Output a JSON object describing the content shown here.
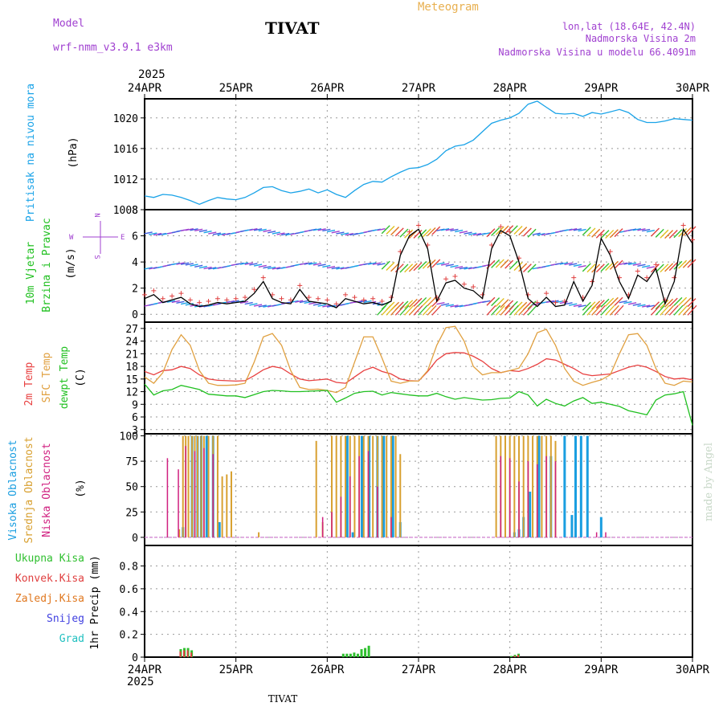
{
  "header": {
    "model_label": "Model",
    "model_name": "wrf-nmm_v3.9.1 e3km",
    "station": "TIVAT",
    "meteogram": "Meteogram",
    "lonlat": "lon,lat (18.64E, 42.4N)",
    "elevation": "Nadmorska Visina 2m",
    "model_elevation": "Nadmorska Visina u modelu 66.4091m",
    "footer_station": "TIVAT",
    "credit": "made by Angel"
  },
  "time_axis": {
    "year": "2025",
    "ticks": [
      "24APR",
      "25APR",
      "26APR",
      "27APR",
      "28APR",
      "29APR",
      "30APR"
    ]
  },
  "colors": {
    "pressure": "#1aa3e8",
    "wind_speed": "#000000",
    "temp2m": "#e84040",
    "sfc_temp": "#e0a040",
    "dewpt": "#20c020",
    "high_cloud": "#1a9ee0",
    "mid_cloud": "#d8a030",
    "low_cloud": "#d02080",
    "purple": "#a040d0",
    "total_precip": "#30c030",
    "conv_precip": "#e04040",
    "gridscale_precip": "#e07820",
    "snow": "#4040e0",
    "hail": "#20c0c0"
  },
  "chart_data": [
    {
      "type": "line",
      "title": "Pritisak na nivou mora",
      "ylabel": "(hPa)",
      "yticks": [
        1008,
        1012,
        1016,
        1020
      ],
      "ylim": [
        1008,
        1022.5
      ],
      "x_days": [
        0,
        0.1,
        0.2,
        0.3,
        0.4,
        0.5,
        0.6,
        0.7,
        0.8,
        0.9,
        1.0,
        1.1,
        1.2,
        1.3,
        1.4,
        1.5,
        1.6,
        1.7,
        1.8,
        1.9,
        2.0,
        2.1,
        2.2,
        2.3,
        2.4,
        2.5,
        2.6,
        2.7,
        2.8,
        2.9,
        3.0,
        3.1,
        3.2,
        3.3,
        3.4,
        3.5,
        3.6,
        3.7,
        3.8,
        3.9,
        4.0,
        4.1,
        4.2,
        4.3,
        4.4,
        4.5,
        4.6,
        4.7,
        4.8,
        4.9,
        5.0,
        5.1,
        5.2,
        5.3,
        5.4,
        5.5,
        5.6,
        5.7,
        5.8,
        5.9,
        6.0
      ],
      "values": [
        1009.8,
        1009.6,
        1010.0,
        1009.9,
        1009.6,
        1009.2,
        1008.7,
        1009.2,
        1009.6,
        1009.4,
        1009.3,
        1009.6,
        1010.2,
        1010.9,
        1011.0,
        1010.5,
        1010.2,
        1010.4,
        1010.7,
        1010.2,
        1010.6,
        1010.0,
        1009.6,
        1010.5,
        1011.3,
        1011.7,
        1011.6,
        1012.3,
        1012.9,
        1013.4,
        1013.5,
        1013.9,
        1014.6,
        1015.7,
        1016.3,
        1016.5,
        1017.1,
        1018.2,
        1019.3,
        1019.7,
        1020.0,
        1020.6,
        1021.8,
        1022.2,
        1021.4,
        1020.6,
        1020.5,
        1020.6,
        1020.2,
        1020.7,
        1020.5,
        1020.8,
        1021.1,
        1020.7,
        1019.8,
        1019.4,
        1019.4,
        1019.6,
        1019.9,
        1019.8,
        1019.7
      ]
    },
    {
      "type": "line",
      "title": "10m Vjetar Brzina i Pravac",
      "ylabel": "(m/s)",
      "yticks": [
        0,
        2,
        4,
        6,
        8
      ],
      "ylim": [
        -0.6,
        8
      ],
      "compass_n": "N",
      "compass_s": "S",
      "compass_e": "E",
      "compass_w": "W",
      "x_days": [
        0,
        0.1,
        0.2,
        0.3,
        0.4,
        0.5,
        0.6,
        0.7,
        0.8,
        0.9,
        1.0,
        1.1,
        1.2,
        1.3,
        1.4,
        1.5,
        1.6,
        1.7,
        1.8,
        1.9,
        2.0,
        2.1,
        2.2,
        2.3,
        2.4,
        2.5,
        2.6,
        2.7,
        2.8,
        2.9,
        3.0,
        3.1,
        3.2,
        3.3,
        3.4,
        3.5,
        3.6,
        3.7,
        3.8,
        3.9,
        4.0,
        4.1,
        4.2,
        4.3,
        4.4,
        4.5,
        4.6,
        4.7,
        4.8,
        4.9,
        5.0,
        5.1,
        5.2,
        5.3,
        5.4,
        5.5,
        5.6,
        5.7,
        5.8,
        5.9,
        6.0
      ],
      "values": [
        1.2,
        1.5,
        0.9,
        1.1,
        1.3,
        0.8,
        0.6,
        0.7,
        0.9,
        0.8,
        0.9,
        1.0,
        1.6,
        2.5,
        1.2,
        0.9,
        0.8,
        1.9,
        1.0,
        0.9,
        0.8,
        0.5,
        1.2,
        1.0,
        0.8,
        0.9,
        0.7,
        1.0,
        4.5,
        6.0,
        6.5,
        5.0,
        1.0,
        2.4,
        2.6,
        2.0,
        1.8,
        1.2,
        5.0,
        6.4,
        6.0,
        4.0,
        1.2,
        0.6,
        1.3,
        0.6,
        0.7,
        2.5,
        1.0,
        2.2,
        5.8,
        4.5,
        2.5,
        1.2,
        3.0,
        2.5,
        3.5,
        0.8,
        2.5,
        6.5,
        5.4
      ],
      "wind_rows": [
        6.3,
        3.7,
        0.8
      ],
      "gust_row": 0.3
    },
    {
      "type": "line",
      "title": "2m Temp / SFC Temp / dewpt Temp",
      "ylabel": "(C)",
      "yticks": [
        3,
        6,
        9,
        12,
        15,
        18,
        21,
        24,
        27
      ],
      "ylim": [
        2,
        28.5
      ],
      "x_days": [
        0,
        0.1,
        0.2,
        0.3,
        0.4,
        0.5,
        0.6,
        0.7,
        0.8,
        0.9,
        1.0,
        1.1,
        1.2,
        1.3,
        1.4,
        1.5,
        1.6,
        1.7,
        1.8,
        1.9,
        2.0,
        2.1,
        2.2,
        2.3,
        2.4,
        2.5,
        2.6,
        2.7,
        2.8,
        2.9,
        3.0,
        3.1,
        3.2,
        3.3,
        3.4,
        3.5,
        3.6,
        3.7,
        3.8,
        3.9,
        4.0,
        4.1,
        4.2,
        4.3,
        4.4,
        4.5,
        4.6,
        4.7,
        4.8,
        4.9,
        5.0,
        5.1,
        5.2,
        5.3,
        5.4,
        5.5,
        5.6,
        5.7,
        5.8,
        5.9,
        6.0
      ],
      "series": [
        {
          "name": "2m Temp",
          "values": [
            16.8,
            16.0,
            17.0,
            17.2,
            18.0,
            17.5,
            16.0,
            15.0,
            14.7,
            14.6,
            14.5,
            14.6,
            15.8,
            17.2,
            18.0,
            17.6,
            16.2,
            15.0,
            14.6,
            14.8,
            15.0,
            14.2,
            14.0,
            15.5,
            17.0,
            17.8,
            16.8,
            16.2,
            15.0,
            14.6,
            14.5,
            16.8,
            19.5,
            21.0,
            21.3,
            21.2,
            20.4,
            19.2,
            17.5,
            16.5,
            17.0,
            16.8,
            17.5,
            18.5,
            19.8,
            19.5,
            18.5,
            17.5,
            16.2,
            15.8,
            16.0,
            16.2,
            17.0,
            17.8,
            18.3,
            17.8,
            16.8,
            15.6,
            15.0,
            15.2,
            14.8
          ]
        },
        {
          "name": "SFC Temp",
          "values": [
            15.5,
            14.0,
            16.5,
            22.0,
            25.5,
            23.0,
            17.0,
            14.0,
            13.5,
            13.5,
            13.6,
            14.0,
            19.0,
            25.0,
            25.8,
            23.0,
            17.0,
            13.0,
            12.5,
            12.6,
            12.3,
            11.8,
            13.0,
            19.0,
            25.0,
            25.0,
            20.0,
            14.5,
            14.0,
            14.5,
            14.5,
            17.0,
            23.0,
            27.2,
            27.5,
            24.0,
            18.0,
            16.0,
            16.5,
            16.5,
            17.0,
            17.6,
            21.0,
            26.0,
            26.8,
            23.0,
            17.5,
            14.5,
            13.5,
            14.2,
            14.8,
            16.0,
            21.0,
            25.5,
            25.8,
            23.0,
            17.5,
            14.0,
            13.5,
            14.5,
            14.3
          ]
        },
        {
          "name": "dewpt Temp",
          "values": [
            13.8,
            11.2,
            12.2,
            12.5,
            13.5,
            13.0,
            12.5,
            11.4,
            11.2,
            11.0,
            11.0,
            10.6,
            11.3,
            12.0,
            12.3,
            12.2,
            12.0,
            12.0,
            12.1,
            12.2,
            12.3,
            9.5,
            10.5,
            11.6,
            12.0,
            12.1,
            11.2,
            11.8,
            11.5,
            11.2,
            11.0,
            11.0,
            11.6,
            10.8,
            10.2,
            10.6,
            10.3,
            10.0,
            10.1,
            10.4,
            10.5,
            12.0,
            11.2,
            8.6,
            10.2,
            9.2,
            8.6,
            9.8,
            10.6,
            9.2,
            9.5,
            9.0,
            8.5,
            7.5,
            7.0,
            6.5,
            10.0,
            11.2,
            11.5,
            12.0,
            4.0
          ]
        }
      ]
    },
    {
      "type": "bar",
      "title": "Visoka Oblacnost / Srednja Oblacnost / Niska Oblacnost",
      "ylabel": "(%)",
      "yticks": [
        0,
        25,
        50,
        75,
        100
      ],
      "ylim": [
        -8,
        102
      ],
      "series": [
        {
          "name": "Visoka Oblacnost",
          "x_days": [
            0.42,
            0.52,
            0.58,
            0.62,
            0.68,
            0.75,
            0.82,
            2.22,
            2.28,
            2.38,
            2.46,
            2.55,
            2.62,
            2.72,
            2.8,
            4.05,
            4.1,
            4.15,
            4.22,
            4.32,
            4.45,
            4.6,
            4.68,
            4.72,
            4.78,
            4.85,
            5.0
          ],
          "values": [
            10,
            100,
            100,
            100,
            100,
            100,
            15,
            100,
            5,
            100,
            100,
            100,
            100,
            100,
            15,
            5,
            8,
            20,
            45,
            100,
            80,
            100,
            22,
            100,
            100,
            100,
            20
          ]
        },
        {
          "name": "Srednja Oblacnost",
          "x_days": [
            0.38,
            0.42,
            0.45,
            0.48,
            0.52,
            0.55,
            0.58,
            0.62,
            0.65,
            0.7,
            0.75,
            0.8,
            0.85,
            0.9,
            0.95,
            1.25,
            1.88,
            1.95,
            2.05,
            2.1,
            2.15,
            2.2,
            2.25,
            2.3,
            2.35,
            2.4,
            2.45,
            2.5,
            2.55,
            2.6,
            2.65,
            2.7,
            2.75,
            2.8,
            3.85,
            3.9,
            3.95,
            4.0,
            4.05,
            4.1,
            4.15,
            4.2,
            4.25,
            4.3,
            4.35,
            4.4,
            4.45,
            4.5
          ],
          "values": [
            8,
            100,
            100,
            100,
            100,
            100,
            100,
            100,
            100,
            100,
            100,
            100,
            60,
            62,
            65,
            5,
            95,
            15,
            100,
            100,
            100,
            100,
            100,
            100,
            100,
            100,
            100,
            100,
            100,
            100,
            100,
            100,
            100,
            82,
            100,
            100,
            100,
            100,
            100,
            100,
            100,
            100,
            100,
            100,
            100,
            100,
            100,
            95
          ]
        },
        {
          "name": "Niska Oblacnost",
          "x_days": [
            0.25,
            0.37,
            0.45,
            0.55,
            0.65,
            0.75,
            1.95,
            2.05,
            2.15,
            2.25,
            2.35,
            2.45,
            2.55,
            2.7,
            3.9,
            4.0,
            4.1,
            4.2,
            4.3,
            4.4,
            4.5,
            4.95,
            5.05
          ],
          "values": [
            78,
            67,
            90,
            85,
            88,
            82,
            20,
            25,
            40,
            60,
            80,
            85,
            50,
            20,
            80,
            78,
            55,
            75,
            72,
            80,
            75,
            5,
            5
          ]
        }
      ]
    },
    {
      "type": "bar",
      "title": "1hr Precip",
      "ylabel": "1hr Precip (mm)",
      "yticks": [
        0,
        0.2,
        0.4,
        0.6,
        0.8
      ],
      "ylim": [
        0,
        0.98
      ],
      "legend": [
        "Ukupna Kisa",
        "Konvek.Kisa",
        "Zaledj.Kisa",
        "Snijeg",
        "Grad"
      ],
      "x_days": [
        0.4,
        0.44,
        0.48,
        0.52,
        2.18,
        2.22,
        2.26,
        2.3,
        2.34,
        2.38,
        2.42,
        2.46,
        4.02,
        4.06,
        4.1
      ],
      "values": [
        0.07,
        0.08,
        0.08,
        0.06,
        0.03,
        0.03,
        0.03,
        0.04,
        0.03,
        0.07,
        0.08,
        0.1,
        0.01,
        0.02,
        0.03
      ],
      "convective": [
        0.05,
        0.06,
        0.06,
        0.04,
        0.0,
        0.0,
        0.0,
        0.0,
        0.0,
        0.0,
        0.0,
        0.0,
        0.0,
        0.01,
        0.02
      ]
    }
  ]
}
